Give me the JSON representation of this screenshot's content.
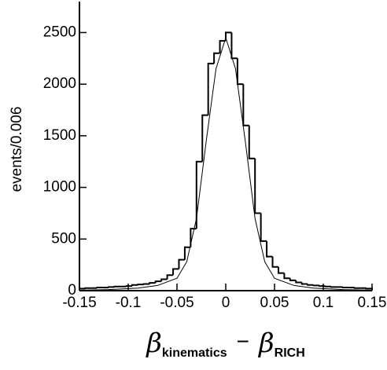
{
  "chart_data": {
    "type": "histogram",
    "ylabel": "events/0.006",
    "xlabel": [
      "β",
      "kinematics",
      "−",
      "β",
      "RICH"
    ],
    "bins": [
      -0.15,
      -0.144,
      -0.138,
      -0.132,
      -0.126,
      -0.12,
      -0.114,
      -0.108,
      -0.102,
      -0.096,
      -0.09,
      -0.084,
      -0.078,
      -0.072,
      -0.066,
      -0.06,
      -0.054,
      -0.048,
      -0.042,
      -0.036,
      -0.03,
      -0.024,
      -0.018,
      -0.012,
      -0.006,
      0,
      0.006,
      0.012,
      0.018,
      0.024,
      0.03,
      0.036,
      0.042,
      0.048,
      0.054,
      0.06,
      0.066,
      0.072,
      0.078,
      0.084,
      0.09,
      0.096,
      0.102,
      0.108,
      0.114,
      0.12,
      0.126,
      0.132,
      0.138,
      0.144,
      0.15
    ],
    "values": [
      20,
      25,
      25,
      30,
      30,
      35,
      40,
      40,
      45,
      55,
      60,
      65,
      75,
      90,
      110,
      150,
      210,
      300,
      420,
      600,
      1250,
      1700,
      2200,
      2300,
      2420,
      2500,
      2250,
      2000,
      1600,
      1280,
      750,
      480,
      330,
      230,
      170,
      120,
      100,
      80,
      65,
      55,
      50,
      45,
      40,
      35,
      35,
      30,
      30,
      25,
      25,
      20
    ],
    "color": "#000000",
    "fit": {
      "x": [
        -0.15,
        -0.12,
        -0.09,
        -0.07,
        -0.05,
        -0.04,
        -0.03,
        -0.02,
        -0.01,
        0,
        0.01,
        0.02,
        0.03,
        0.04,
        0.05,
        0.07,
        0.09,
        0.12,
        0.15
      ],
      "values": [
        5,
        10,
        25,
        50,
        120,
        280,
        700,
        1450,
        2150,
        2450,
        2150,
        1450,
        700,
        280,
        120,
        50,
        25,
        10,
        5
      ]
    },
    "xlim": [
      -0.15,
      0.15
    ],
    "xticks": [
      -0.15,
      -0.1,
      -0.05,
      0,
      0.05,
      0.1,
      0.15
    ],
    "ylim": [
      0,
      2800
    ],
    "yticks": [
      0,
      500,
      1000,
      1500,
      2000,
      2500
    ]
  }
}
